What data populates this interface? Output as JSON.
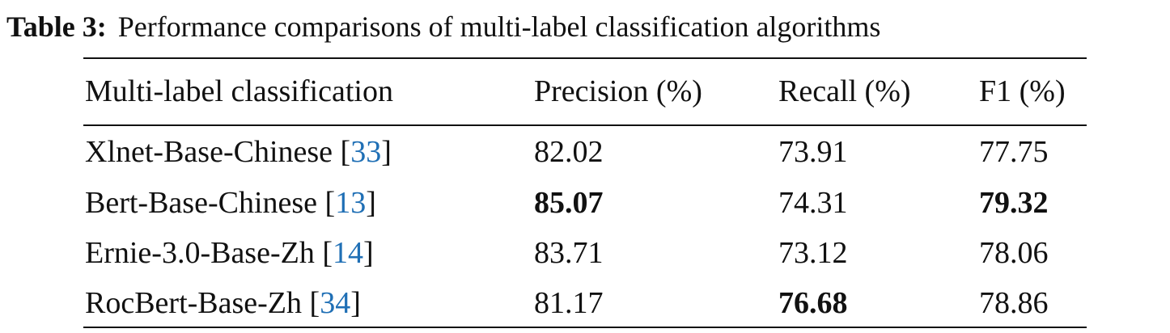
{
  "caption": {
    "label": "Table 3:",
    "text": "Performance comparisons of multi-label classification algorithms"
  },
  "table": {
    "header": [
      "Multi-label classification",
      "Precision (%)",
      "Recall (%)",
      "F1 (%)"
    ],
    "rows": [
      {
        "model": "Xlnet-Base-Chinese",
        "ref_open": "[",
        "ref": "33",
        "ref_close": "]",
        "values": [
          "82.02",
          "73.91",
          "77.75"
        ],
        "bold": [
          false,
          false,
          false
        ]
      },
      {
        "model": "Bert-Base-Chinese",
        "ref_open": "[",
        "ref": "13",
        "ref_close": "]",
        "values": [
          "85.07",
          "74.31",
          "79.32"
        ],
        "bold": [
          true,
          false,
          true
        ]
      },
      {
        "model": "Ernie-3.0-Base-Zh",
        "ref_open": "[",
        "ref": "14",
        "ref_close": "]",
        "values": [
          "83.71",
          "73.12",
          "78.06"
        ],
        "bold": [
          false,
          false,
          false
        ]
      },
      {
        "model": "RocBert-Base-Zh",
        "ref_open": "[",
        "ref": "34",
        "ref_close": "]",
        "values": [
          "81.17",
          "76.68",
          "78.86"
        ],
        "bold": [
          false,
          true,
          false
        ]
      }
    ]
  }
}
